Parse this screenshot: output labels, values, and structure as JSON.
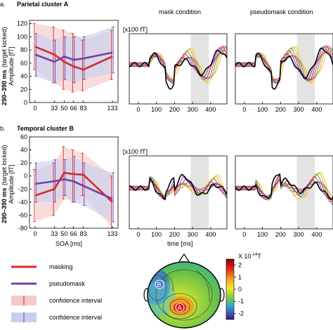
{
  "figure": {
    "panel_a_letter": "a.",
    "panel_a_title": "Parietal cluster A",
    "panel_b_letter": "b.",
    "panel_b_title": "Temporal cluster B",
    "mask_condition": "mask condition",
    "pseudomask_condition": "pseudomask condition",
    "row_ylabel_bold": "290–390 ms",
    "row_ylabel_paren": "(target locked)",
    "amplitude_label": "Amplitude [fT]",
    "wave_units": "[x100 fT]",
    "soa_label": "SOA [ms]",
    "time_label": "time [ms]",
    "topo_scale_label": "X 10",
    "topo_scale_exp": "-14",
    "topo_scale_unit": "T",
    "topo_marker_a": "A",
    "topo_marker_b": "B",
    "colors": {
      "masking": "#d42a2a",
      "pseudomask": "#7a3fa0",
      "ci_red": "#f4c9c9",
      "ci_blue": "#c9cff0",
      "highlight": "#e3e3e3"
    }
  },
  "legend": {
    "masking": "masking",
    "pseudomask": "pseudomask",
    "ci1": "confidence interval",
    "ci2": "confidence interval"
  },
  "chart_data": [
    {
      "type": "line",
      "panel": "Parietal cluster A",
      "x": [
        0,
        33,
        50,
        66,
        83,
        133
      ],
      "x_ticks": [
        "0",
        "33",
        "50",
        "66",
        "83",
        "133"
      ],
      "y_ticks": [
        "0",
        "20",
        "40",
        "60",
        "80",
        "100",
        "120"
      ],
      "ylim": [
        0,
        125
      ],
      "ylabel": "Amplitude [fT]",
      "series": [
        {
          "name": "masking",
          "values": [
            85,
            73,
            62,
            55,
            50,
            70
          ],
          "ci_low": [
            50,
            30,
            20,
            16,
            18,
            35
          ],
          "ci_high": [
            120,
            115,
            110,
            105,
            95,
            110
          ]
        },
        {
          "name": "pseudomask",
          "values": [
            73,
            62,
            70,
            65,
            67,
            76
          ],
          "ci_low": [
            40,
            30,
            35,
            30,
            35,
            45
          ],
          "ci_high": [
            105,
            95,
            100,
            100,
            100,
            115
          ]
        }
      ]
    },
    {
      "type": "line",
      "panel": "Temporal cluster B",
      "x": [
        0,
        33,
        50,
        66,
        83,
        133
      ],
      "x_ticks": [
        "0",
        "33",
        "50",
        "66",
        "83",
        "133"
      ],
      "y_ticks": [
        "-80",
        "-60",
        "-40",
        "-20",
        "0",
        "20",
        "40",
        "60"
      ],
      "ylim": [
        -80,
        60
      ],
      "xlabel": "SOA [ms]",
      "ylabel": "Amplitude [fT]",
      "series": [
        {
          "name": "masking",
          "values": [
            -30,
            -20,
            5,
            3,
            2,
            -40
          ],
          "ci_low": [
            -70,
            -60,
            -35,
            -40,
            -30,
            -80
          ],
          "ci_high": [
            10,
            20,
            45,
            40,
            35,
            0
          ]
        },
        {
          "name": "pseudomask",
          "values": [
            -12,
            -8,
            -5,
            -8,
            -15,
            -35
          ],
          "ci_low": [
            -40,
            -40,
            -30,
            -40,
            -45,
            -70
          ],
          "ci_high": [
            20,
            25,
            25,
            30,
            20,
            5
          ]
        }
      ]
    },
    {
      "type": "line",
      "panel": "Parietal cluster A — mask condition",
      "x_ticks": [
        "0",
        "100",
        "200",
        "300",
        "400"
      ],
      "xlim": [
        -50,
        490
      ],
      "highlight_ms": [
        290,
        390
      ]
    },
    {
      "type": "line",
      "panel": "Parietal cluster A — pseudomask condition",
      "x_ticks": [
        "0",
        "100",
        "200",
        "300",
        "400"
      ],
      "xlim": [
        -50,
        490
      ],
      "highlight_ms": [
        290,
        390
      ]
    },
    {
      "type": "line",
      "panel": "Temporal cluster B — mask condition",
      "x_ticks": [
        "0",
        "100",
        "200",
        "300",
        "400"
      ],
      "xlim": [
        -50,
        490
      ],
      "xlabel": "time [ms]",
      "highlight_ms": [
        290,
        390
      ]
    },
    {
      "type": "line",
      "panel": "Temporal cluster B — pseudomask condition",
      "x_ticks": [
        "0",
        "100",
        "200",
        "300",
        "400"
      ],
      "xlim": [
        -50,
        490
      ],
      "highlight_ms": [
        290,
        390
      ]
    },
    {
      "type": "heatmap",
      "panel": "topography",
      "colorbar_ticks": [
        "2",
        "1",
        "0",
        "-1",
        "-2"
      ],
      "clim": [
        -2.5,
        2.5
      ]
    }
  ]
}
